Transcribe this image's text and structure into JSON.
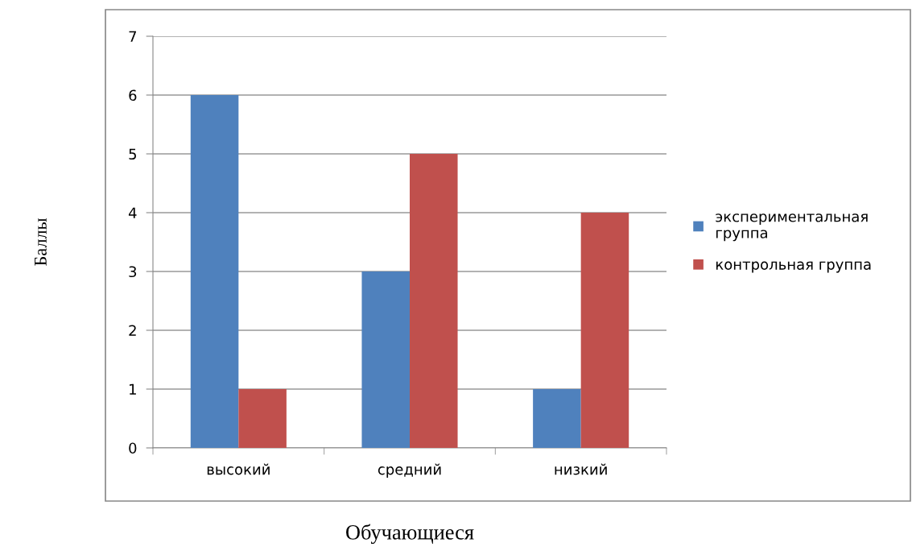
{
  "chart_data": {
    "type": "bar",
    "xlabel": "Обучающиеся",
    "ylabel": "Баллы",
    "categories": [
      "высокий",
      "средний",
      "низкий"
    ],
    "series": [
      {
        "name": "экспериментальная группа",
        "color": "#4f81bd",
        "values": [
          6,
          3,
          1
        ]
      },
      {
        "name": "контрольная группа",
        "color": "#c0504d",
        "values": [
          1,
          5,
          4
        ]
      }
    ],
    "ylim": [
      0,
      7
    ],
    "yticks": [
      0,
      1,
      2,
      3,
      4,
      5,
      6,
      7
    ],
    "grid": "y",
    "legend": "right"
  }
}
